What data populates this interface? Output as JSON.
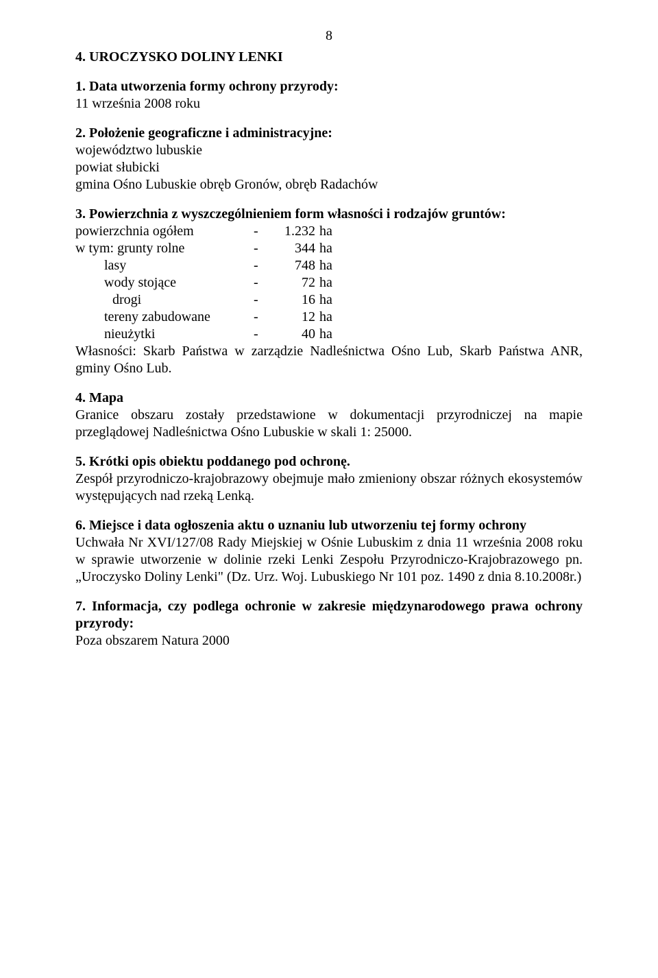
{
  "pageNumber": "8",
  "title": "4. UROCZYSKO DOLINY LENKI",
  "sec1": {
    "head": "1. Data utworzenia formy ochrony przyrody:",
    "body": "11 września 2008 roku"
  },
  "sec2": {
    "head": "2. Położenie geograficzne i administracyjne:",
    "l1": "województwo lubuskie",
    "l2": "powiat słubicki",
    "l3": "gmina Ośno Lubuskie obręb Gronów, obręb Radachów"
  },
  "sec3": {
    "head": "3. Powierzchnia z wyszczególnieniem form własności i rodzajów gruntów:",
    "rows": [
      {
        "label": "powierzchnia ogółem",
        "cls": "land-label",
        "num": "1.232",
        "unit": "ha"
      },
      {
        "label": "w tym: grunty rolne",
        "cls": "land-label",
        "num": "344",
        "unit": "ha"
      },
      {
        "label": "lasy",
        "cls": "land-indent1",
        "num": "748",
        "unit": "ha"
      },
      {
        "label": "wody stojące",
        "cls": "land-indent1",
        "num": "72",
        "unit": "ha"
      },
      {
        "label": "drogi",
        "cls": "land-indent2",
        "num": "16",
        "unit": "ha"
      },
      {
        "label": "tereny zabudowane",
        "cls": "land-indent1",
        "num": "12",
        "unit": "ha"
      },
      {
        "label": "nieużytki",
        "cls": "land-indent1",
        "num": "40",
        "unit": "ha"
      }
    ],
    "tail": "Własności: Skarb Państwa w zarządzie Nadleśnictwa Ośno Lub, Skarb Państwa ANR, gminy Ośno Lub."
  },
  "sec4": {
    "head": "4. Mapa",
    "body": "Granice obszaru zostały przedstawione w dokumentacji przyrodniczej na mapie przeglądowej Nadleśnictwa Ośno Lubuskie w skali 1: 25000."
  },
  "sec5": {
    "head": "5. Krótki opis obiektu poddanego pod ochronę.",
    "body": "Zespół przyrodniczo-krajobrazowy obejmuje mało zmieniony obszar różnych ekosystemów występujących nad rzeką Lenką."
  },
  "sec6": {
    "head": "6. Miejsce i data ogłoszenia aktu o uznaniu lub utworzeniu tej formy ochrony",
    "body": "Uchwała Nr XVI/127/08 Rady Miejskiej w Ośnie Lubuskim z dnia 11 września 2008 roku w sprawie utworzenie w dolinie rzeki Lenki Zespołu Przyrodniczo-Krajobrazowego pn. „Uroczysko Doliny Lenki\" (Dz. Urz. Woj. Lubuskiego Nr 101 poz. 1490 z dnia  8.10.2008r.)"
  },
  "sec7": {
    "head": "7. Informacja, czy podlega ochronie w zakresie międzynarodowego prawa ochrony przyrody:",
    "body": "Poza obszarem Natura 2000"
  }
}
